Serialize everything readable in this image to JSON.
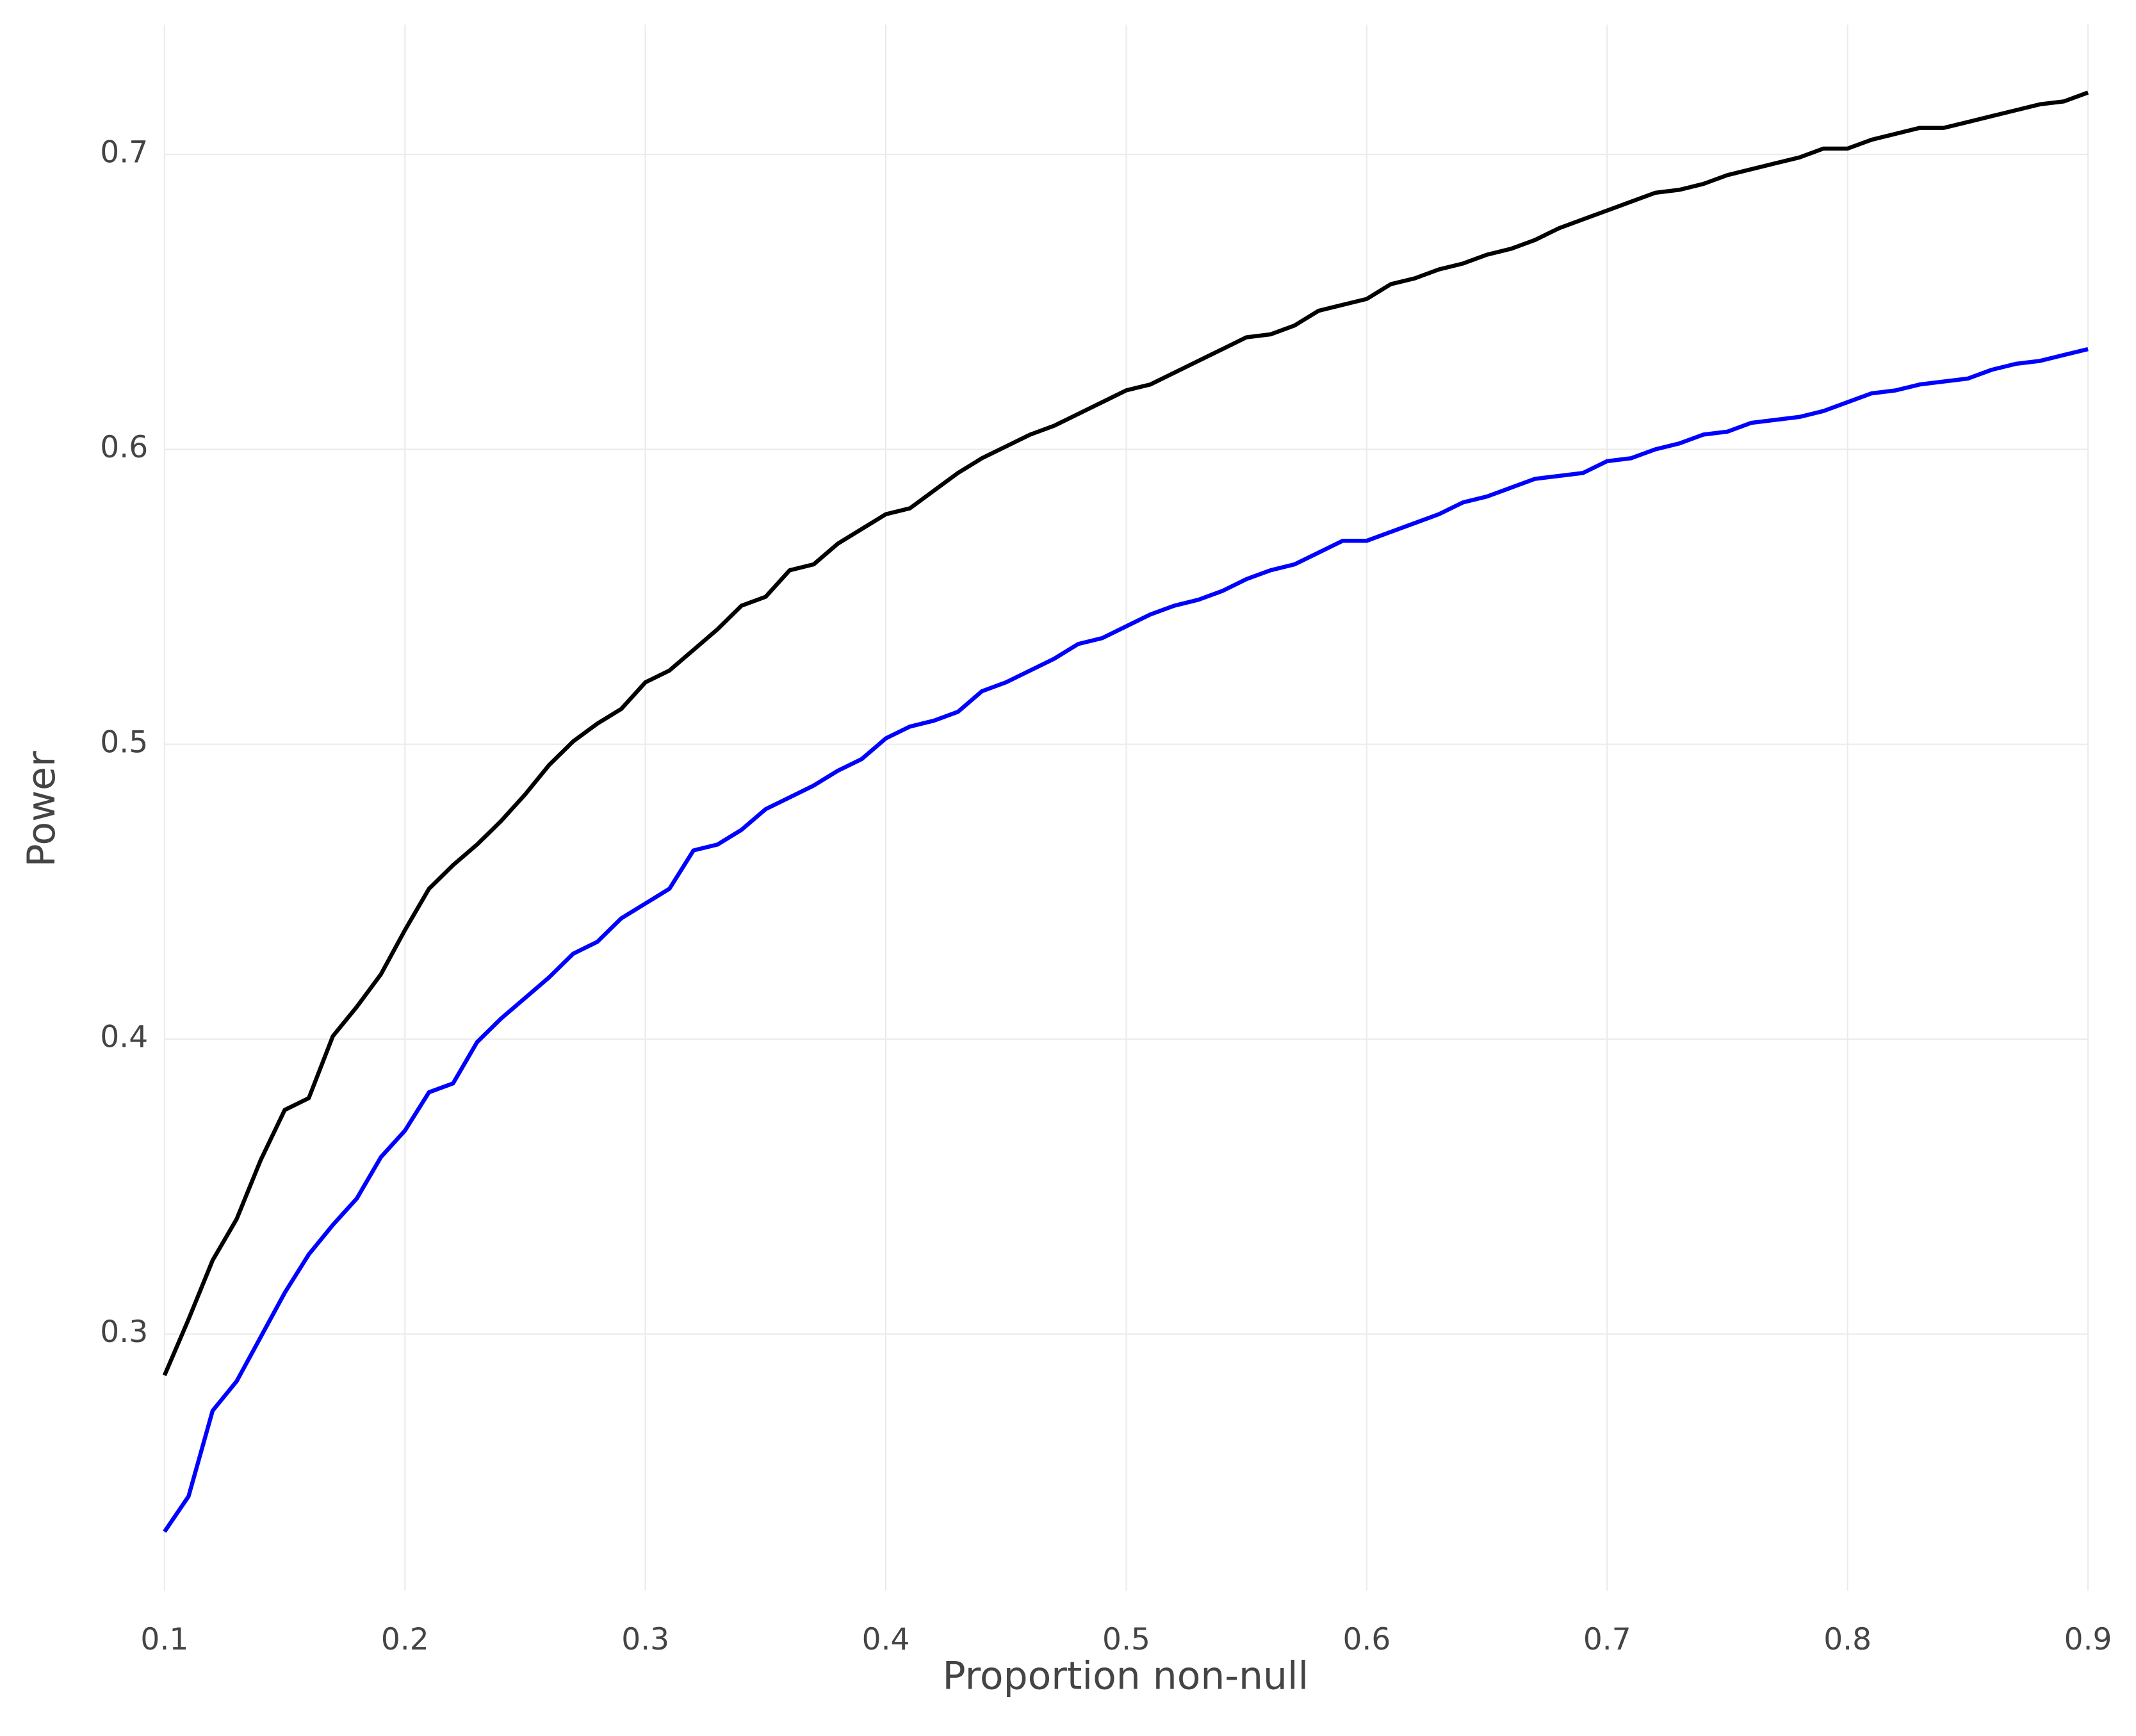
{
  "chart_data": {
    "type": "line",
    "x_label": "Proportion non-null",
    "y_label": "Power",
    "x": [
      0.1,
      0.11,
      0.12,
      0.13,
      0.14,
      0.15,
      0.16,
      0.17,
      0.18,
      0.19,
      0.2,
      0.21,
      0.22,
      0.23,
      0.24,
      0.25,
      0.26,
      0.27,
      0.28,
      0.29,
      0.3,
      0.31,
      0.32,
      0.33,
      0.34,
      0.35,
      0.36,
      0.37,
      0.38,
      0.39,
      0.4,
      0.41,
      0.42,
      0.43,
      0.44,
      0.45,
      0.46,
      0.47,
      0.48,
      0.49,
      0.5,
      0.51,
      0.52,
      0.53,
      0.54,
      0.55,
      0.56,
      0.57,
      0.58,
      0.59,
      0.6,
      0.61,
      0.62,
      0.63,
      0.64,
      0.65,
      0.66,
      0.67,
      0.68,
      0.69,
      0.7,
      0.71,
      0.72,
      0.73,
      0.74,
      0.75,
      0.76,
      0.77,
      0.78,
      0.79,
      0.8,
      0.81,
      0.82,
      0.83,
      0.84,
      0.85,
      0.86,
      0.87,
      0.88,
      0.89,
      0.9
    ],
    "series": [
      {
        "color": "#000000",
        "values": [
          0.286,
          0.305,
          0.325,
          0.339,
          0.359,
          0.376,
          0.38,
          0.401,
          0.411,
          0.422,
          0.437,
          0.451,
          0.459,
          0.466,
          0.474,
          0.483,
          0.493,
          0.501,
          0.507,
          0.512,
          0.521,
          0.525,
          0.532,
          0.539,
          0.547,
          0.55,
          0.559,
          0.561,
          0.568,
          0.573,
          0.578,
          0.58,
          0.586,
          0.592,
          0.597,
          0.601,
          0.605,
          0.608,
          0.612,
          0.616,
          0.62,
          0.622,
          0.626,
          0.63,
          0.634,
          0.638,
          0.639,
          0.642,
          0.647,
          0.649,
          0.651,
          0.656,
          0.658,
          0.661,
          0.663,
          0.666,
          0.668,
          0.671,
          0.675,
          0.678,
          0.681,
          0.684,
          0.687,
          0.688,
          0.69,
          0.693,
          0.695,
          0.697,
          0.699,
          0.702,
          0.702,
          0.705,
          0.707,
          0.709,
          0.709,
          0.711,
          0.713,
          0.715,
          0.717,
          0.718,
          0.721
        ]
      },
      {
        "color": "#0000ff",
        "values": [
          0.233,
          0.245,
          0.274,
          0.284,
          0.299,
          0.314,
          0.327,
          0.337,
          0.346,
          0.36,
          0.369,
          0.382,
          0.385,
          0.399,
          0.407,
          0.414,
          0.421,
          0.429,
          0.433,
          0.441,
          0.446,
          0.451,
          0.464,
          0.466,
          0.471,
          0.478,
          0.482,
          0.486,
          0.491,
          0.495,
          0.502,
          0.506,
          0.508,
          0.511,
          0.518,
          0.521,
          0.525,
          0.529,
          0.534,
          0.536,
          0.54,
          0.544,
          0.547,
          0.549,
          0.552,
          0.556,
          0.559,
          0.561,
          0.565,
          0.569,
          0.569,
          0.572,
          0.575,
          0.578,
          0.582,
          0.584,
          0.587,
          0.59,
          0.591,
          0.592,
          0.596,
          0.597,
          0.6,
          0.602,
          0.605,
          0.606,
          0.609,
          0.61,
          0.611,
          0.613,
          0.616,
          0.619,
          0.62,
          0.622,
          0.623,
          0.624,
          0.627,
          0.629,
          0.63,
          0.632,
          0.634
        ]
      }
    ],
    "xlim": [
      0.1,
      0.9
    ],
    "ylim": [
      0.213,
      0.744
    ],
    "xticks": [
      0.1,
      0.2,
      0.3,
      0.4,
      0.5,
      0.6,
      0.7,
      0.8,
      0.9
    ],
    "yticks": [
      0.3,
      0.4,
      0.5,
      0.6,
      0.7
    ],
    "grid": true
  }
}
